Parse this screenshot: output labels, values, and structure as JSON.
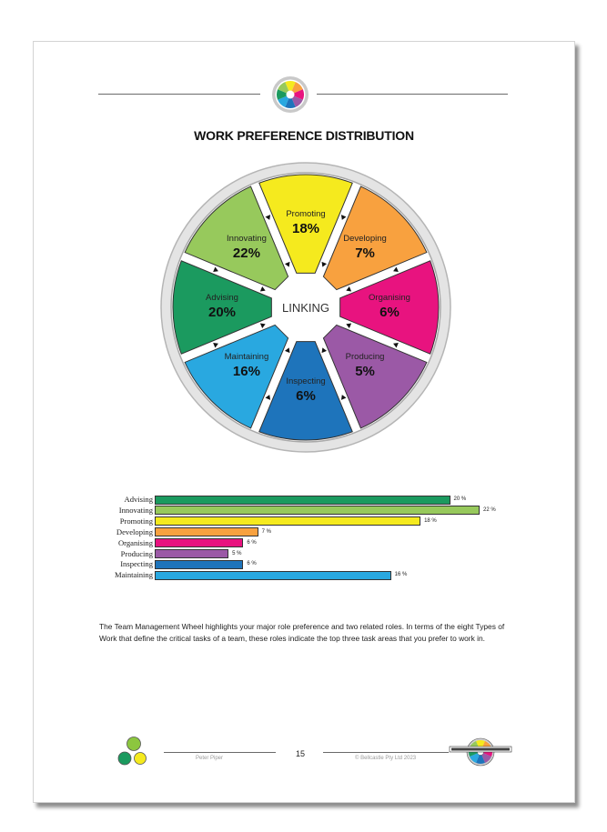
{
  "page": {
    "title": "WORK PREFERENCE DISTRIBUTION",
    "paragraph": "The Team Management Wheel highlights your major role preference and two related roles. In terms of the eight Types of Work that define the critical tasks of a team, these roles indicate the top three task areas that you prefer to work in."
  },
  "wheel": {
    "center_label": "LINKING",
    "segments": [
      {
        "name": "Promoting",
        "value": "18%",
        "color": "#f5ea1e"
      },
      {
        "name": "Developing",
        "value": "7%",
        "color": "#f8a13f"
      },
      {
        "name": "Organising",
        "value": "6%",
        "color": "#e8137f"
      },
      {
        "name": "Producing",
        "value": "5%",
        "color": "#9b59a6"
      },
      {
        "name": "Inspecting",
        "value": "6%",
        "color": "#1e74bb"
      },
      {
        "name": "Maintaining",
        "value": "16%",
        "color": "#29a8e0"
      },
      {
        "name": "Advising",
        "value": "20%",
        "color": "#1b9a5f"
      },
      {
        "name": "Innovating",
        "value": "22%",
        "color": "#97c95c"
      }
    ]
  },
  "chart_data": {
    "type": "bar",
    "orientation": "horizontal",
    "categories": [
      "Advising",
      "Innovating",
      "Promoting",
      "Developing",
      "Organising",
      "Producing",
      "Inspecting",
      "Maintaining"
    ],
    "values": [
      20,
      22,
      18,
      7,
      6,
      5,
      6,
      16
    ],
    "value_labels": [
      "20 %",
      "22 %",
      "18 %",
      "7 %",
      "6 %",
      "5 %",
      "6 %",
      "16 %"
    ],
    "colors": [
      "#1b9a5f",
      "#97c95c",
      "#f5ea1e",
      "#f8a13f",
      "#e8137f",
      "#9b59a6",
      "#1e74bb",
      "#29a8e0"
    ],
    "xlim": [
      0,
      22
    ]
  },
  "footer": {
    "name": "Peter Piper",
    "page_number": "15",
    "copyright": "© Bellcastle Pty Ltd  2023"
  }
}
